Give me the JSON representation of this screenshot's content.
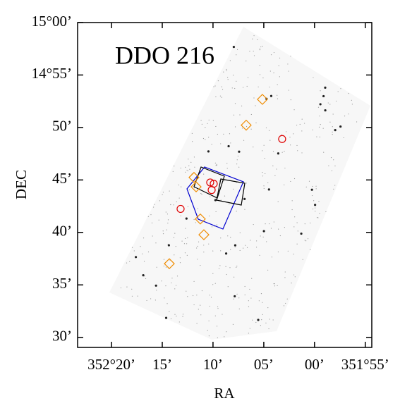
{
  "chart_data": {
    "type": "scatter",
    "annotation": "DDO 216",
    "x_label": "RA",
    "y_label": "DEC",
    "xlim": [
      352.389,
      351.906
    ],
    "ylim": [
      14.484,
      15.0
    ],
    "xticks": [
      {
        "value": 352.3333,
        "label": "352°20’"
      },
      {
        "value": 352.25,
        "label": "15’"
      },
      {
        "value": 352.1667,
        "label": "10’"
      },
      {
        "value": 352.0833,
        "label": "05’"
      },
      {
        "value": 352.0,
        "label": "00’"
      },
      {
        "value": 351.9167,
        "label": "351°55’"
      }
    ],
    "yticks": [
      {
        "value": 15.0,
        "label": "15°00’"
      },
      {
        "value": 14.9167,
        "label": "14°55’"
      },
      {
        "value": 14.8333,
        "label": "50’"
      },
      {
        "value": 14.75,
        "label": "45’"
      },
      {
        "value": 14.6667,
        "label": "40’"
      },
      {
        "value": 14.5833,
        "label": "35’"
      },
      {
        "value": 14.5,
        "label": "30’"
      }
    ],
    "series": [
      {
        "marker": "diamond",
        "color": "#f08c00",
        "x": [
          352.0856,
          352.1122,
          352.1979,
          352.1944,
          352.1875,
          352.1817,
          352.2384
        ],
        "values": [
          14.878,
          14.837,
          14.754,
          14.739,
          14.688,
          14.663,
          14.617
        ]
      },
      {
        "marker": "circle",
        "color": "#e00000",
        "x": [
          352.0532,
          352.1713,
          352.1655,
          352.1689,
          352.2199
        ],
        "values": [
          14.815,
          14.746,
          14.744,
          14.734,
          14.704
        ]
      }
    ]
  }
}
